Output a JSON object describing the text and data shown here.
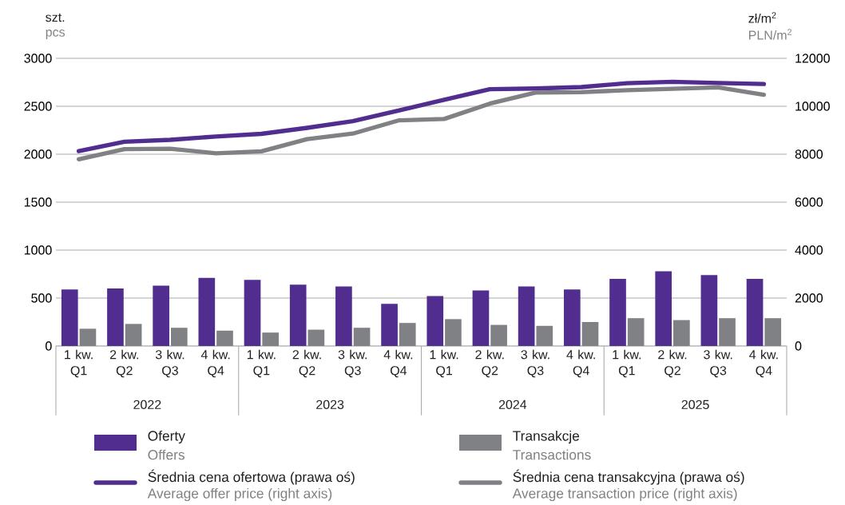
{
  "chart_data": {
    "type": "bar",
    "ylabel": "szt.",
    "y2label": "zł/m$^{2}$",
    "categories": [
      "1 kw. Q1",
      "2 kw. Q2",
      "3 kw. Q3",
      "4 kw. Q4",
      "1 kw. Q1",
      "2 kw. Q2",
      "3 kw. Q3",
      "4 kw. Q4",
      "1 kw. Q1",
      "2 kw. Q2",
      "3 kw. Q3",
      "4 kw. Q4",
      "1 kw. Q1",
      "2 kw. Q2",
      "3 kw. Q3",
      "4 kw. Q4"
    ],
    "series": [
      {
        "name": "Oferty",
        "color": "#512d8f",
        "values": [
          590,
          600,
          630,
          710,
          690,
          640,
          620,
          440,
          520,
          580,
          620,
          590,
          700,
          780,
          740,
          700
        ]
      },
      {
        "name": "Transakcje",
        "color": "#808184",
        "values": [
          180,
          230,
          190,
          160,
          140,
          170,
          190,
          240,
          280,
          220,
          210,
          250,
          290,
          270,
          290,
          290
        ]
      },
      {
        "name": "Średnia cena ofertowa (prawa oś)",
        "type": "line",
        "axis": "y2",
        "color": "#512d8f",
        "values": [
          8130,
          8520,
          8600,
          8740,
          8850,
          9100,
          9380,
          9820,
          10270,
          10710,
          10740,
          10800,
          10960,
          11020,
          10970,
          10930
        ]
      },
      {
        "name": "Średnia cena transakcyjna (prawa oś)",
        "type": "line",
        "axis": "y2",
        "color": "#808184",
        "values": [
          7790,
          8210,
          8230,
          8040,
          8120,
          8630,
          8860,
          9410,
          9470,
          10110,
          10570,
          10590,
          10670,
          10730,
          10790,
          10480
        ]
      }
    ],
    "ylim": [
      0,
      3000
    ],
    "yticks": [
      0,
      500,
      1000,
      1500,
      2000,
      2500,
      3000
    ],
    "y2lim": [
      0,
      12000
    ],
    "y2ticks": [
      0,
      2000,
      4000,
      6000,
      8000,
      10000,
      12000
    ],
    "grid": "y",
    "legend": "bottom",
    "marker": "none",
    "line_style": "solid",
    "annotations": [
      "pcs",
      "PLN/m$^{2}$",
      "2022",
      "2023",
      "2024",
      "2025",
      "Offers",
      "Transactions",
      "Average offer price (right axis)",
      "Average transaction price (right axis)"
    ]
  }
}
